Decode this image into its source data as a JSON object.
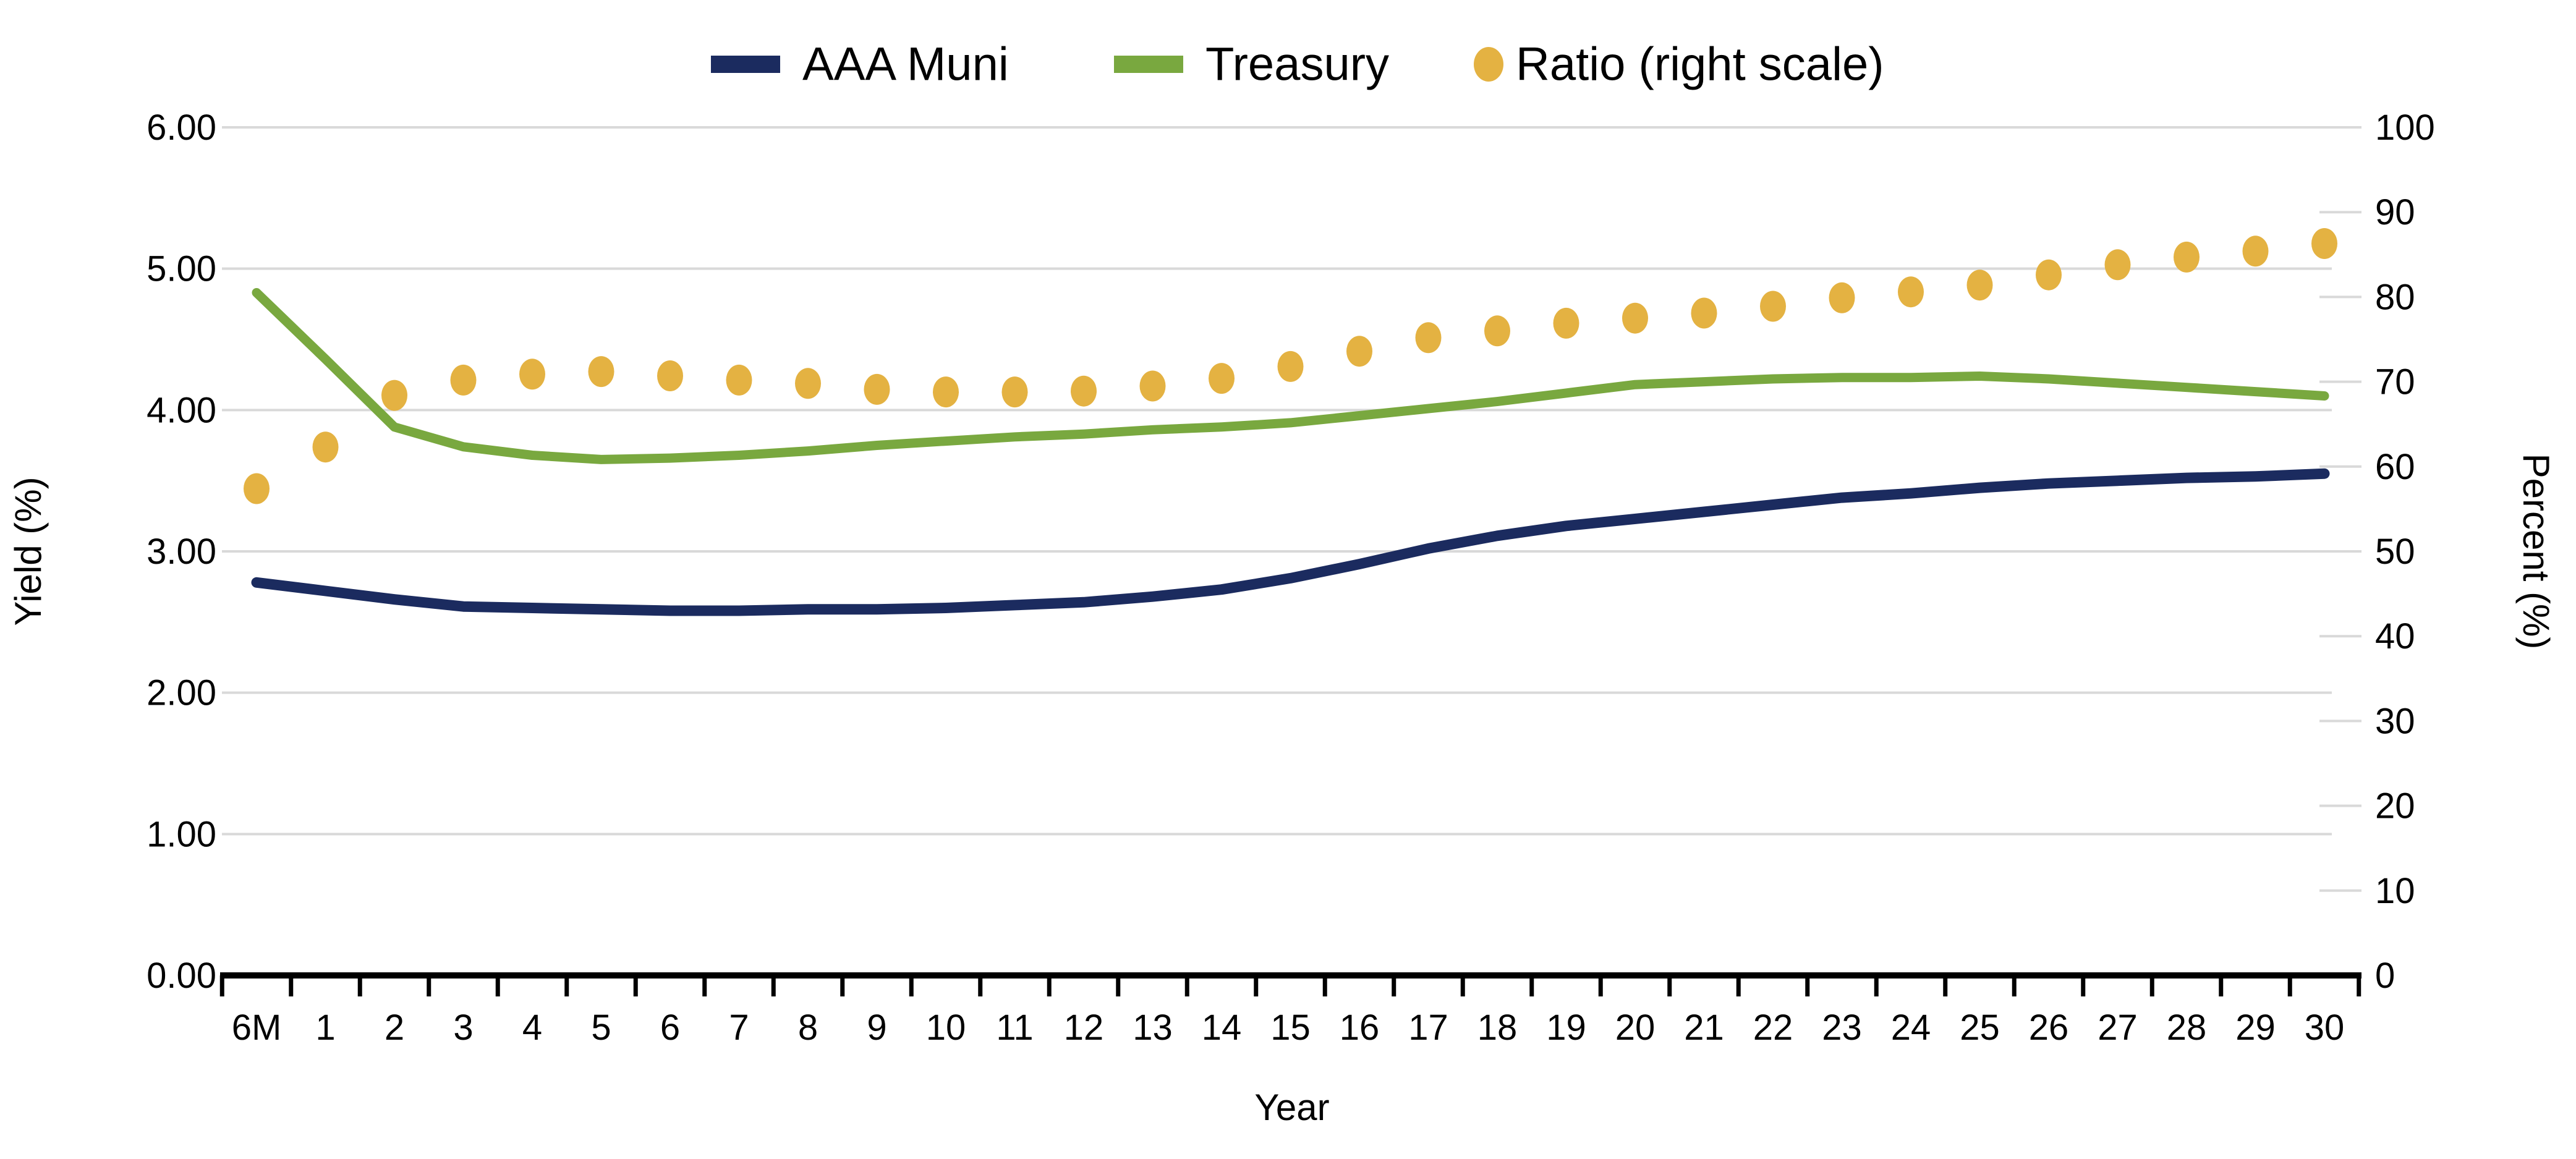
{
  "chart_data": {
    "type": "line",
    "title": "",
    "categories": [
      "6M",
      "1",
      "2",
      "3",
      "4",
      "5",
      "6",
      "7",
      "8",
      "9",
      "10",
      "11",
      "12",
      "13",
      "14",
      "15",
      "16",
      "17",
      "18",
      "19",
      "20",
      "21",
      "22",
      "23",
      "24",
      "25",
      "26",
      "27",
      "28",
      "29",
      "30"
    ],
    "series": [
      {
        "name": "AAA Muni",
        "kind": "line",
        "axis": "left",
        "color_key": "muni",
        "values": [
          2.78,
          2.72,
          2.66,
          2.61,
          2.6,
          2.59,
          2.58,
          2.58,
          2.59,
          2.59,
          2.6,
          2.62,
          2.64,
          2.68,
          2.73,
          2.81,
          2.91,
          3.02,
          3.11,
          3.18,
          3.23,
          3.28,
          3.33,
          3.38,
          3.41,
          3.45,
          3.48,
          3.5,
          3.52,
          3.53,
          3.55
        ]
      },
      {
        "name": "Treasury",
        "kind": "line",
        "axis": "left",
        "color_key": "treasury",
        "values": [
          4.83,
          4.36,
          3.88,
          3.74,
          3.68,
          3.65,
          3.66,
          3.68,
          3.71,
          3.75,
          3.78,
          3.81,
          3.83,
          3.86,
          3.88,
          3.91,
          3.96,
          4.01,
          4.06,
          4.12,
          4.18,
          4.2,
          4.22,
          4.23,
          4.23,
          4.24,
          4.22,
          4.19,
          4.16,
          4.13,
          4.1
        ]
      },
      {
        "name": "Ratio (right scale)",
        "kind": "dots",
        "axis": "right",
        "color_key": "ratio",
        "values": [
          57.4,
          62.3,
          68.4,
          70.2,
          70.9,
          71.2,
          70.7,
          70.2,
          69.8,
          69.1,
          68.8,
          68.8,
          68.9,
          69.5,
          70.4,
          71.8,
          73.6,
          75.2,
          76.0,
          76.9,
          77.5,
          78.1,
          78.9,
          79.9,
          80.6,
          81.4,
          82.6,
          83.8,
          84.7,
          85.4,
          86.3
        ]
      }
    ],
    "x_axis": {
      "label": "Year",
      "tick_labels": [
        "6M",
        "1",
        "2",
        "3",
        "4",
        "5",
        "6",
        "7",
        "8",
        "9",
        "10",
        "11",
        "12",
        "13",
        "14",
        "15",
        "16",
        "17",
        "18",
        "19",
        "20",
        "21",
        "22",
        "23",
        "24",
        "25",
        "26",
        "27",
        "28",
        "29",
        "30"
      ]
    },
    "left_axis": {
      "label": "Yield (%)",
      "min": 0,
      "max": 6,
      "tick_step": 1,
      "tick_labels": [
        "0.00",
        "1.00",
        "2.00",
        "3.00",
        "4.00",
        "5.00",
        "6.00"
      ]
    },
    "right_axis": {
      "label": "Percent (%)",
      "min": 0,
      "max": 100,
      "tick_step": 10,
      "tick_labels": [
        "0",
        "10",
        "20",
        "30",
        "40",
        "50",
        "60",
        "70",
        "80",
        "90",
        "100"
      ]
    },
    "grid": "horizontal gridlines for left axis; short right-edge dashes for right axis",
    "legend_position": "top-center"
  },
  "colors": {
    "muni": "#1b2b5f",
    "treasury": "#79a83f",
    "ratio": "#e4b242",
    "grid": "#d9d9d9",
    "axis": "#000000",
    "background": "#ffffff"
  }
}
